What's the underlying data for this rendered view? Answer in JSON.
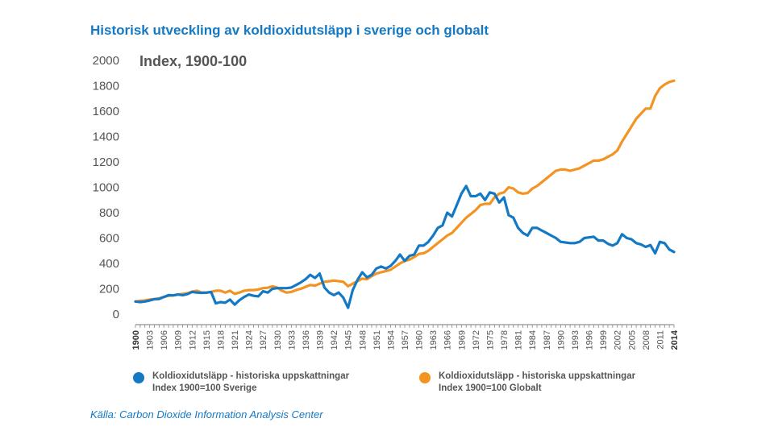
{
  "header": {
    "title": "Historisk utveckling av koldioxidutsläpp i sverige och globalt",
    "subtitle": "Index, 1900-100"
  },
  "legend": {
    "sweden_line1": "Koldioxidutsläpp - historiska uppskattningar",
    "sweden_line2": "Index 1900=100 Sverige",
    "global_line1": "Koldioxidutsläpp - historiska uppskattningar",
    "global_line2": "Index 1900=100 Globalt"
  },
  "source": "Källa: Carbon Dioxide Information Analysis Center",
  "colors": {
    "sweden": "#1479c4",
    "global": "#f39322",
    "text": "#555555",
    "title": "#1479c4"
  },
  "chart_data": {
    "type": "line",
    "title": "Historisk utveckling av koldioxidutsläpp i sverige och globalt",
    "ylabel": "Index, 1900-100",
    "xlabel": "",
    "xlim": [
      1900,
      2014
    ],
    "ylim": [
      0,
      2000
    ],
    "yticks": [
      0,
      200,
      400,
      600,
      800,
      1000,
      1200,
      1400,
      1600,
      1800,
      2000
    ],
    "xticks": [
      1900,
      1903,
      1906,
      1909,
      1912,
      1915,
      1918,
      1921,
      1924,
      1927,
      1930,
      1933,
      1936,
      1939,
      1942,
      1945,
      1948,
      1951,
      1954,
      1957,
      1960,
      1963,
      1966,
      1969,
      1972,
      1975,
      1978,
      1981,
      1984,
      1987,
      1990,
      1993,
      1996,
      1999,
      2002,
      2005,
      2008,
      2011,
      2014
    ],
    "grid": false,
    "legend_position": "bottom",
    "series": [
      {
        "name": "Koldioxidutsläpp - historiska uppskattningar Index 1900=100 Sverige",
        "color": "#1479c4",
        "x": [
          1900,
          1901,
          1902,
          1903,
          1904,
          1905,
          1906,
          1907,
          1908,
          1909,
          1910,
          1911,
          1912,
          1913,
          1914,
          1915,
          1916,
          1917,
          1918,
          1919,
          1920,
          1921,
          1922,
          1923,
          1924,
          1925,
          1926,
          1927,
          1928,
          1929,
          1930,
          1931,
          1932,
          1933,
          1934,
          1935,
          1936,
          1937,
          1938,
          1939,
          1940,
          1941,
          1942,
          1943,
          1944,
          1945,
          1946,
          1947,
          1948,
          1949,
          1950,
          1951,
          1952,
          1953,
          1954,
          1955,
          1956,
          1957,
          1958,
          1959,
          1960,
          1961,
          1962,
          1963,
          1964,
          1965,
          1966,
          1967,
          1968,
          1969,
          1970,
          1971,
          1972,
          1973,
          1974,
          1975,
          1976,
          1977,
          1978,
          1979,
          1980,
          1981,
          1982,
          1983,
          1984,
          1985,
          1986,
          1987,
          1988,
          1989,
          1990,
          1991,
          1992,
          1993,
          1994,
          1995,
          1996,
          1997,
          1998,
          1999,
          2000,
          2001,
          2002,
          2003,
          2004,
          2005,
          2006,
          2007,
          2008,
          2009,
          2010,
          2011,
          2012,
          2013,
          2014
        ],
        "values": [
          100,
          95,
          100,
          108,
          118,
          120,
          135,
          150,
          148,
          155,
          150,
          158,
          175,
          170,
          168,
          170,
          175,
          85,
          95,
          90,
          115,
          75,
          110,
          135,
          155,
          145,
          140,
          180,
          170,
          200,
          205,
          205,
          205,
          210,
          230,
          250,
          275,
          310,
          285,
          320,
          210,
          170,
          150,
          170,
          130,
          50,
          190,
          270,
          330,
          290,
          310,
          360,
          375,
          360,
          380,
          420,
          470,
          420,
          460,
          470,
          540,
          540,
          570,
          620,
          680,
          700,
          800,
          770,
          860,
          950,
          1010,
          930,
          930,
          950,
          900,
          960,
          950,
          880,
          920,
          780,
          760,
          680,
          640,
          620,
          680,
          680,
          660,
          640,
          620,
          600,
          570,
          565,
          560,
          560,
          570,
          600,
          605,
          610,
          580,
          580,
          555,
          540,
          560,
          630,
          600,
          590,
          560,
          550,
          530,
          545,
          480,
          570,
          560,
          510,
          490
        ]
      },
      {
        "name": "Koldioxidutsläpp - historiska uppskattningar Index 1900=100 Globalt",
        "color": "#f39322",
        "x": [
          1900,
          1901,
          1902,
          1903,
          1904,
          1905,
          1906,
          1907,
          1908,
          1909,
          1910,
          1911,
          1912,
          1913,
          1914,
          1915,
          1916,
          1917,
          1918,
          1919,
          1920,
          1921,
          1922,
          1923,
          1924,
          1925,
          1926,
          1927,
          1928,
          1929,
          1930,
          1931,
          1932,
          1933,
          1934,
          1935,
          1936,
          1937,
          1938,
          1939,
          1940,
          1941,
          1942,
          1943,
          1944,
          1945,
          1946,
          1947,
          1948,
          1949,
          1950,
          1951,
          1952,
          1953,
          1954,
          1955,
          1956,
          1957,
          1958,
          1959,
          1960,
          1961,
          1962,
          1963,
          1964,
          1965,
          1966,
          1967,
          1968,
          1969,
          1970,
          1971,
          1972,
          1973,
          1974,
          1975,
          1976,
          1977,
          1978,
          1979,
          1980,
          1981,
          1982,
          1983,
          1984,
          1985,
          1986,
          1987,
          1988,
          1989,
          1990,
          1991,
          1992,
          1993,
          1994,
          1995,
          1996,
          1997,
          1998,
          1999,
          2000,
          2001,
          2002,
          2003,
          2004,
          2005,
          2006,
          2007,
          2008,
          2009,
          2010,
          2011,
          2012,
          2013,
          2014
        ],
        "values": [
          100,
          105,
          108,
          115,
          118,
          125,
          135,
          145,
          148,
          155,
          160,
          165,
          178,
          185,
          170,
          168,
          175,
          185,
          185,
          170,
          185,
          160,
          170,
          185,
          190,
          190,
          195,
          205,
          208,
          220,
          210,
          185,
          170,
          175,
          190,
          200,
          215,
          230,
          225,
          240,
          255,
          260,
          265,
          260,
          255,
          220,
          240,
          260,
          280,
          275,
          300,
          320,
          330,
          340,
          350,
          375,
          400,
          420,
          430,
          450,
          475,
          480,
          500,
          530,
          560,
          590,
          620,
          640,
          680,
          720,
          760,
          790,
          820,
          860,
          870,
          870,
          920,
          950,
          960,
          1000,
          990,
          960,
          950,
          955,
          990,
          1010,
          1040,
          1070,
          1100,
          1130,
          1140,
          1140,
          1130,
          1140,
          1150,
          1170,
          1190,
          1210,
          1210,
          1220,
          1240,
          1260,
          1290,
          1360,
          1420,
          1480,
          1540,
          1580,
          1620,
          1620,
          1720,
          1780,
          1810,
          1830,
          1840
        ]
      }
    ]
  }
}
